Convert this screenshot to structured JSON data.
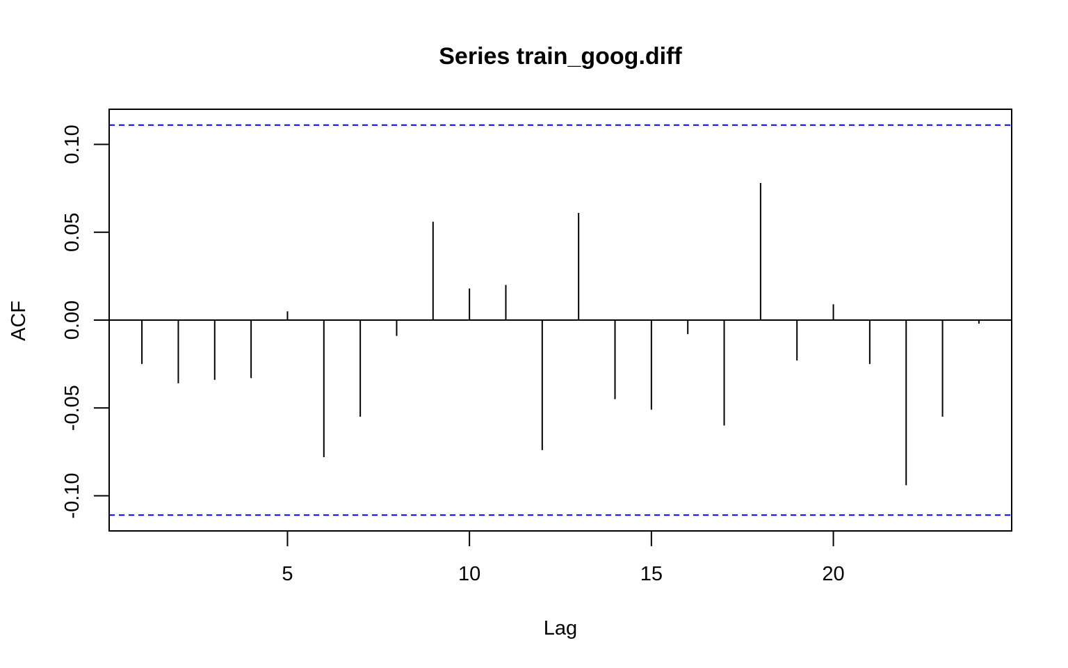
{
  "chart_data": {
    "type": "bar",
    "title": "Series train_goog.diff",
    "xlabel": "Lag",
    "ylabel": "ACF",
    "xlim": [
      0.1,
      24.9
    ],
    "ylim": [
      -0.12,
      0.12
    ],
    "x_ticks": [
      5,
      10,
      15,
      20
    ],
    "y_ticks": [
      -0.1,
      -0.05,
      0.0,
      0.05,
      0.1
    ],
    "y_tick_labels": [
      "-0.10",
      "-0.05",
      "0.00",
      "0.05",
      "0.10"
    ],
    "x_tick_labels": [
      "5",
      "10",
      "15",
      "20"
    ],
    "confidence_bound": 0.111,
    "lags": [
      1,
      2,
      3,
      4,
      5,
      6,
      7,
      8,
      9,
      10,
      11,
      12,
      13,
      14,
      15,
      16,
      17,
      18,
      19,
      20,
      21,
      22,
      23,
      24
    ],
    "values": [
      -0.025,
      -0.036,
      -0.034,
      -0.033,
      0.005,
      -0.078,
      -0.055,
      -0.009,
      0.056,
      0.018,
      0.02,
      -0.074,
      0.061,
      -0.045,
      -0.051,
      -0.008,
      -0.06,
      0.078,
      -0.023,
      0.009,
      -0.025,
      -0.094,
      -0.055,
      -0.002
    ],
    "grid": false,
    "colors": {
      "bars": "#000000",
      "confidence": "#0000ff",
      "frame": "#000000"
    }
  }
}
